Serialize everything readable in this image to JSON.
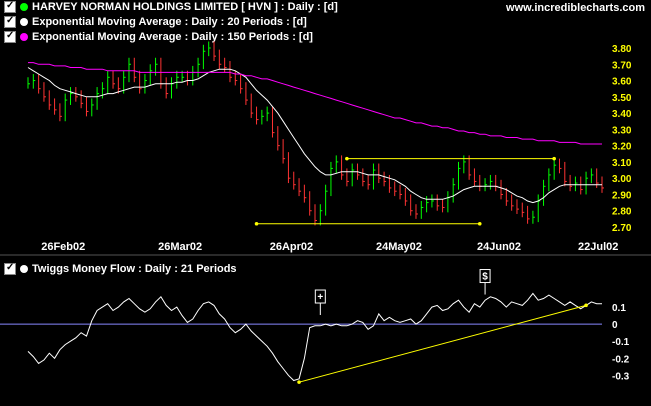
{
  "site": "www.incrediblecharts.com",
  "legend_top": [
    {
      "label": "HARVEY NORMAN HOLDINGS LIMITED  [ HVN ] : Daily : [d]",
      "color": "#00ff00"
    },
    {
      "label": "Exponential Moving Average : Daily : 20 Periods : [d]",
      "color": "#ffffff"
    },
    {
      "label": "Exponential Moving Average : Daily : 150 Periods : [d]",
      "color": "#ff00ff"
    }
  ],
  "legend_bottom": {
    "label": "Twiggs Money Flow : Daily : 21 Periods",
    "color": "#ffffff"
  },
  "chart_data": [
    {
      "type": "line",
      "panel": "price",
      "x_ticks": [
        "26Feb02",
        "26Mar02",
        "26Apr02",
        "24May02",
        "24Jun02",
        "22Jul02"
      ],
      "y_ticks": [
        "3.80",
        "3.70",
        "3.60",
        "3.50",
        "3.40",
        "3.30",
        "3.20",
        "3.10",
        "3.00",
        "2.90",
        "2.80",
        "2.70"
      ],
      "ylim": [
        2.7,
        3.8
      ],
      "series": [
        {
          "name": "HARVEY NORMAN HOLDINGS LIMITED",
          "color": "#00ff00",
          "style": "bars",
          "values": [
            3.58,
            3.6,
            3.55,
            3.5,
            3.45,
            3.42,
            3.38,
            3.48,
            3.52,
            3.5,
            3.46,
            3.41,
            3.45,
            3.52,
            3.55,
            3.62,
            3.58,
            3.55,
            3.62,
            3.7,
            3.62,
            3.55,
            3.6,
            3.66,
            3.7,
            3.58,
            3.52,
            3.58,
            3.62,
            3.62,
            3.6,
            3.65,
            3.7,
            3.78,
            3.8,
            3.75,
            3.7,
            3.68,
            3.62,
            3.6,
            3.55,
            3.48,
            3.4,
            3.36,
            3.38,
            3.4,
            3.28,
            3.2,
            3.12,
            3.0,
            2.96,
            2.92,
            2.88,
            2.8,
            2.74,
            2.8,
            2.92,
            3.06,
            3.1,
            3.02,
            2.98,
            3.05,
            3.02,
            2.98,
            2.96,
            3.05,
            3.0,
            2.98,
            2.94,
            2.92,
            2.9,
            2.86,
            2.8,
            2.78,
            2.82,
            2.85,
            2.86,
            2.83,
            2.82,
            2.88,
            2.96,
            3.06,
            3.1,
            3.02,
            2.98,
            2.95,
            2.96,
            2.98,
            2.95,
            2.9,
            2.86,
            2.83,
            2.81,
            2.79,
            2.75,
            2.76,
            2.86,
            2.95,
            3.02,
            3.08,
            3.06,
            2.98,
            2.95,
            2.97,
            2.93,
            3.0,
            3.02,
            2.97,
            2.94
          ]
        },
        {
          "name": "Exponential Moving Average : 20 Periods",
          "color": "#ffffff",
          "style": "line",
          "values": [
            3.68,
            3.66,
            3.64,
            3.62,
            3.6,
            3.57,
            3.55,
            3.54,
            3.53,
            3.52,
            3.51,
            3.5,
            3.5,
            3.5,
            3.51,
            3.52,
            3.52,
            3.53,
            3.54,
            3.55,
            3.56,
            3.56,
            3.56,
            3.57,
            3.58,
            3.58,
            3.58,
            3.58,
            3.59,
            3.59,
            3.6,
            3.6,
            3.61,
            3.63,
            3.65,
            3.66,
            3.67,
            3.67,
            3.67,
            3.66,
            3.64,
            3.62,
            3.58,
            3.54,
            3.51,
            3.48,
            3.44,
            3.4,
            3.35,
            3.3,
            3.25,
            3.2,
            3.15,
            3.11,
            3.07,
            3.04,
            3.02,
            3.02,
            3.03,
            3.04,
            3.04,
            3.04,
            3.04,
            3.03,
            3.02,
            3.02,
            3.02,
            3.01,
            3.0,
            2.99,
            2.97,
            2.95,
            2.92,
            2.9,
            2.88,
            2.87,
            2.87,
            2.87,
            2.87,
            2.88,
            2.89,
            2.91,
            2.93,
            2.94,
            2.95,
            2.95,
            2.95,
            2.95,
            2.95,
            2.94,
            2.93,
            2.91,
            2.89,
            2.88,
            2.86,
            2.85,
            2.86,
            2.88,
            2.91,
            2.93,
            2.95,
            2.96,
            2.96,
            2.96,
            2.96,
            2.96,
            2.96,
            2.96,
            2.96
          ]
        },
        {
          "name": "Exponential Moving Average : 150 Periods",
          "color": "#ff00ff",
          "style": "line",
          "values": [
            3.71,
            3.71,
            3.7,
            3.7,
            3.7,
            3.69,
            3.69,
            3.69,
            3.68,
            3.68,
            3.68,
            3.67,
            3.67,
            3.67,
            3.67,
            3.66,
            3.66,
            3.66,
            3.66,
            3.66,
            3.66,
            3.65,
            3.65,
            3.65,
            3.65,
            3.65,
            3.65,
            3.65,
            3.65,
            3.65,
            3.65,
            3.65,
            3.65,
            3.65,
            3.65,
            3.65,
            3.65,
            3.65,
            3.65,
            3.64,
            3.64,
            3.63,
            3.63,
            3.62,
            3.61,
            3.61,
            3.6,
            3.59,
            3.58,
            3.57,
            3.56,
            3.55,
            3.54,
            3.53,
            3.52,
            3.51,
            3.5,
            3.49,
            3.48,
            3.47,
            3.46,
            3.45,
            3.44,
            3.43,
            3.42,
            3.41,
            3.4,
            3.39,
            3.38,
            3.37,
            3.37,
            3.36,
            3.35,
            3.34,
            3.34,
            3.33,
            3.32,
            3.32,
            3.31,
            3.31,
            3.3,
            3.29,
            3.29,
            3.28,
            3.28,
            3.27,
            3.27,
            3.26,
            3.26,
            3.26,
            3.25,
            3.25,
            3.25,
            3.24,
            3.24,
            3.24,
            3.23,
            3.23,
            3.23,
            3.23,
            3.22,
            3.22,
            3.22,
            3.22,
            3.21,
            3.21,
            3.21,
            3.21,
            3.21
          ]
        }
      ],
      "annotations": [
        {
          "type": "hline",
          "y": 3.12,
          "x_from": 60,
          "x_to": 99,
          "color": "#ffff00"
        },
        {
          "type": "hline",
          "y": 2.72,
          "x_from": 43,
          "x_to": 85,
          "color": "#ffff00"
        }
      ]
    },
    {
      "type": "line",
      "panel": "indicator",
      "y_ticks": [
        "0.1",
        "0",
        "-0.1",
        "-0.2",
        "-0.3"
      ],
      "ylim": [
        -0.38,
        0.2
      ],
      "series": [
        {
          "name": "Twiggs Money Flow : Daily : 21 Periods",
          "color": "#ffffff",
          "values": [
            -0.16,
            -0.19,
            -0.23,
            -0.21,
            -0.17,
            -0.2,
            -0.15,
            -0.12,
            -0.1,
            -0.08,
            -0.05,
            -0.07,
            0.02,
            0.08,
            0.1,
            0.12,
            0.08,
            0.1,
            0.13,
            0.15,
            0.12,
            0.09,
            0.07,
            0.09,
            0.13,
            0.16,
            0.11,
            0.08,
            0.1,
            0.05,
            0.01,
            0.03,
            0.08,
            0.12,
            0.13,
            0.11,
            0.06,
            0.03,
            -0.02,
            -0.05,
            -0.03,
            0.0,
            -0.04,
            -0.07,
            -0.1,
            -0.13,
            -0.17,
            -0.22,
            -0.26,
            -0.3,
            -0.33,
            -0.32,
            -0.2,
            -0.02,
            -0.01,
            -0.01,
            0.0,
            -0.01,
            0.0,
            -0.01,
            -0.01,
            0.0,
            0.02,
            0.01,
            -0.03,
            -0.01,
            0.06,
            0.02,
            0.04,
            0.02,
            0.01,
            0.02,
            0.03,
            0.0,
            0.02,
            0.06,
            0.1,
            0.11,
            0.08,
            0.09,
            0.12,
            0.14,
            0.1,
            0.07,
            0.12,
            0.1,
            0.14,
            0.16,
            0.15,
            0.13,
            0.1,
            0.13,
            0.12,
            0.11,
            0.14,
            0.18,
            0.14,
            0.15,
            0.17,
            0.15,
            0.13,
            0.11,
            0.13,
            0.11,
            0.09,
            0.11,
            0.13,
            0.12,
            0.12
          ]
        }
      ],
      "annotations": [
        {
          "type": "trendline",
          "from": [
            51,
            -0.34
          ],
          "to": [
            105,
            0.11
          ],
          "color": "#ffff00"
        },
        {
          "type": "signal",
          "label": "+",
          "x": 55,
          "value": 0.03
        },
        {
          "type": "signal",
          "label": "$",
          "x": 86,
          "value": 0.15
        }
      ]
    }
  ]
}
